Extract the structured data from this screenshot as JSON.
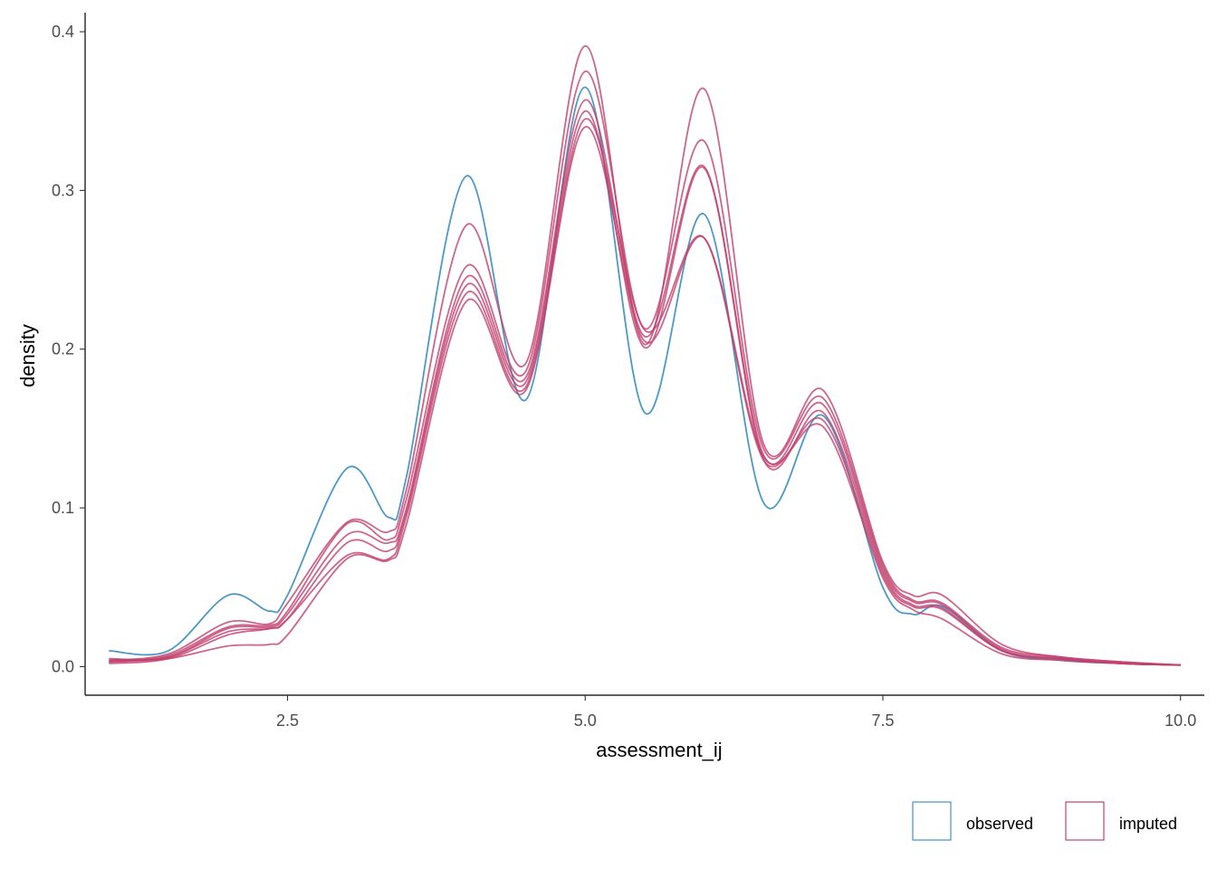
{
  "chart_data": {
    "type": "line",
    "title": "",
    "xlabel": "assessment_ij",
    "ylabel": "density",
    "xlim": [
      0.8,
      10.2
    ],
    "ylim": [
      -0.018,
      0.412
    ],
    "x_ticks": [
      2.5,
      5.0,
      7.5,
      10.0
    ],
    "x_tick_labels": [
      "2.5",
      "5.0",
      "7.5",
      "10.0"
    ],
    "y_ticks": [
      0.0,
      0.1,
      0.2,
      0.3,
      0.4
    ],
    "y_tick_labels": [
      "0.0",
      "0.1",
      "0.2",
      "0.3",
      "0.4"
    ],
    "grid": false,
    "legend_position": "bottom-right",
    "legend": [
      {
        "key": "observed",
        "label": "observed",
        "color": "#4393c3"
      },
      {
        "key": "imputed",
        "label": "imputed",
        "color": "#c0406e"
      }
    ],
    "x": [
      1.0,
      1.5,
      2.0,
      2.35,
      2.5,
      3.0,
      3.35,
      3.5,
      4.0,
      4.5,
      5.0,
      5.5,
      6.0,
      6.5,
      7.0,
      7.5,
      7.75,
      8.0,
      8.5,
      9.0,
      9.5,
      10.0
    ],
    "series": [
      {
        "group": "observed",
        "values": [
          0.01,
          0.01,
          0.045,
          0.035,
          0.045,
          0.125,
          0.094,
          0.12,
          0.309,
          0.168,
          0.365,
          0.16,
          0.285,
          0.103,
          0.158,
          0.05,
          0.033,
          0.038,
          0.01,
          0.004,
          0.002,
          0.001
        ]
      },
      {
        "group": "imputed",
        "values": [
          0.004,
          0.008,
          0.028,
          0.027,
          0.04,
          0.091,
          0.085,
          0.112,
          0.278,
          0.191,
          0.391,
          0.203,
          0.364,
          0.14,
          0.174,
          0.066,
          0.045,
          0.045,
          0.014,
          0.006,
          0.003,
          0.001
        ]
      },
      {
        "group": "imputed",
        "values": [
          0.003,
          0.007,
          0.025,
          0.026,
          0.035,
          0.09,
          0.08,
          0.106,
          0.252,
          0.186,
          0.375,
          0.213,
          0.331,
          0.137,
          0.169,
          0.064,
          0.042,
          0.04,
          0.012,
          0.006,
          0.003,
          0.001
        ]
      },
      {
        "group": "imputed",
        "values": [
          0.005,
          0.006,
          0.024,
          0.025,
          0.033,
          0.083,
          0.078,
          0.1,
          0.245,
          0.182,
          0.357,
          0.208,
          0.315,
          0.133,
          0.165,
          0.062,
          0.041,
          0.039,
          0.011,
          0.005,
          0.002,
          0.001
        ]
      },
      {
        "group": "imputed",
        "values": [
          0.002,
          0.005,
          0.02,
          0.024,
          0.03,
          0.078,
          0.073,
          0.098,
          0.24,
          0.179,
          0.35,
          0.201,
          0.314,
          0.13,
          0.16,
          0.06,
          0.039,
          0.037,
          0.01,
          0.005,
          0.002,
          0.001
        ]
      },
      {
        "group": "imputed",
        "values": [
          0.004,
          0.006,
          0.022,
          0.024,
          0.03,
          0.07,
          0.068,
          0.095,
          0.235,
          0.176,
          0.345,
          0.212,
          0.27,
          0.13,
          0.155,
          0.058,
          0.038,
          0.036,
          0.01,
          0.005,
          0.002,
          0.001
        ]
      },
      {
        "group": "imputed",
        "values": [
          0.003,
          0.005,
          0.013,
          0.014,
          0.02,
          0.068,
          0.067,
          0.09,
          0.23,
          0.174,
          0.34,
          0.205,
          0.27,
          0.132,
          0.151,
          0.056,
          0.036,
          0.03,
          0.008,
          0.004,
          0.002,
          0.001
        ]
      }
    ]
  }
}
